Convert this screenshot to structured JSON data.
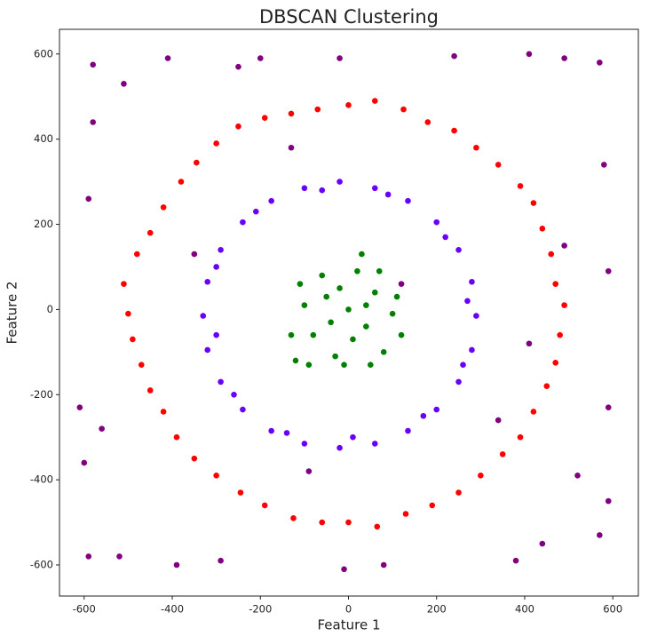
{
  "chart_data": {
    "type": "scatter",
    "title": "DBSCAN Clustering",
    "xlabel": "Feature 1",
    "ylabel": "Feature 2",
    "xlim": [
      -656,
      658
    ],
    "ylim": [
      -673,
      658
    ],
    "xticks": [
      -600,
      -400,
      -200,
      0,
      200,
      400,
      600
    ],
    "yticks": [
      -600,
      -400,
      -200,
      0,
      200,
      400,
      600
    ],
    "series": [
      {
        "color": "#ff0000",
        "x": [
          490,
          460,
          420,
          340,
          240,
          125,
          0,
          -130,
          -250,
          -345,
          -420,
          -480,
          -500,
          -470,
          -420,
          -350,
          -245,
          -125,
          0,
          130,
          250,
          350,
          420,
          470,
          470,
          440,
          390,
          290,
          180,
          60,
          -70,
          -190,
          -300,
          -380,
          -450,
          -510,
          -490,
          -450,
          -390,
          -300,
          -190,
          -60,
          65,
          190,
          300,
          390,
          450,
          480
        ],
        "y": [
          10,
          130,
          250,
          340,
          420,
          470,
          480,
          460,
          430,
          345,
          240,
          130,
          -10,
          -130,
          -240,
          -350,
          -430,
          -490,
          -500,
          -480,
          -430,
          -340,
          -240,
          -125,
          60,
          190,
          290,
          380,
          440,
          490,
          470,
          450,
          390,
          300,
          180,
          60,
          -70,
          -190,
          -300,
          -390,
          -460,
          -500,
          -510,
          -460,
          -390,
          -300,
          -180,
          -60
        ]
      },
      {
        "color": "#6a00f8",
        "x": [
          290,
          280,
          250,
          200,
          135,
          60,
          -20,
          -100,
          -175,
          -240,
          -290,
          -320,
          -330,
          -320,
          -290,
          -240,
          -175,
          -100,
          -20,
          60,
          135,
          200,
          250,
          280,
          270,
          220,
          90,
          -60,
          -210,
          -300,
          -300,
          -260,
          -140,
          10,
          170,
          260
        ],
        "y": [
          -15,
          65,
          140,
          205,
          255,
          285,
          300,
          285,
          255,
          205,
          140,
          65,
          -15,
          -95,
          -170,
          -235,
          -285,
          -315,
          -325,
          -315,
          -285,
          -235,
          -170,
          -95,
          20,
          170,
          270,
          280,
          230,
          100,
          -60,
          -200,
          -290,
          -300,
          -250,
          -130
        ]
      },
      {
        "color": "#008000",
        "x": [
          0,
          -50,
          40,
          -80,
          60,
          -100,
          100,
          20,
          -30,
          -120,
          80,
          -60,
          30,
          -130,
          120,
          -20,
          50,
          -90,
          10,
          -40,
          70,
          -110,
          110,
          -10,
          40
        ],
        "y": [
          0,
          30,
          -40,
          -60,
          40,
          10,
          -10,
          90,
          -110,
          -120,
          -100,
          80,
          130,
          -60,
          -60,
          50,
          -130,
          -130,
          -70,
          -30,
          90,
          60,
          30,
          -130,
          10
        ]
      },
      {
        "color": "#800080",
        "x": [
          -580,
          -510,
          -410,
          -250,
          -200,
          -20,
          240,
          410,
          490,
          570,
          580,
          590,
          -590,
          -580,
          -590,
          -520,
          -390,
          -290,
          -10,
          80,
          380,
          440,
          570,
          590,
          590,
          -610,
          -600,
          -560,
          -130,
          120,
          -90,
          340,
          520,
          490,
          -350,
          410
        ],
        "y": [
          575,
          530,
          590,
          570,
          590,
          590,
          595,
          600,
          590,
          580,
          340,
          90,
          260,
          440,
          -580,
          -580,
          -600,
          -590,
          -610,
          -600,
          -590,
          -550,
          -530,
          -450,
          -230,
          -230,
          -360,
          -280,
          380,
          60,
          -380,
          -260,
          -390,
          150,
          130,
          -80
        ]
      }
    ]
  }
}
